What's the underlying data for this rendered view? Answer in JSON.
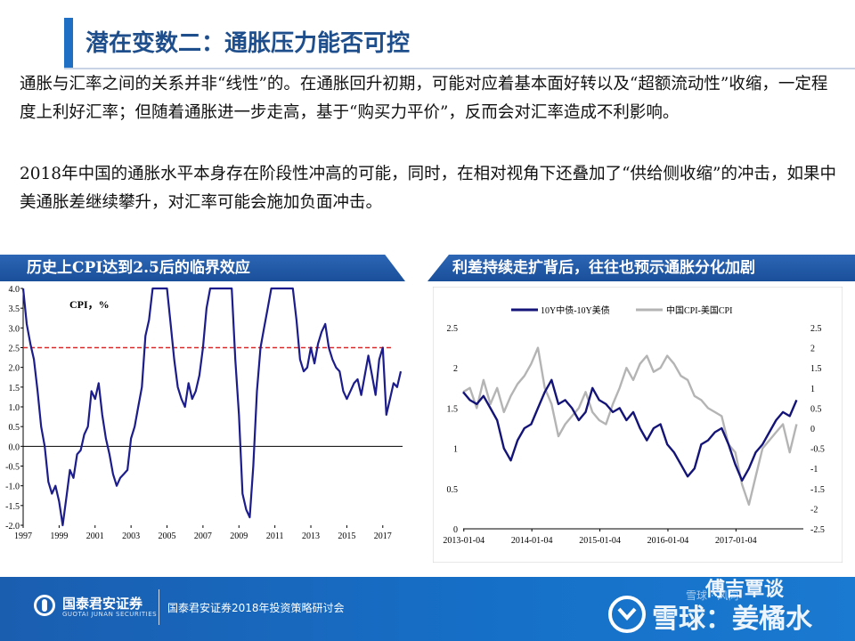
{
  "title": "潜在变数二：通胀压力能否可控",
  "paragraph1": "通胀与汇率之间的关系并非“线性”的。在通胀回升初期，可能对应着基本面好转以及“超额流动性”收缩，一定程度上利好汇率；但随着通胀进一步走高，基于“购买力平价”，反而会对汇率造成不利影响。",
  "paragraph2": "2018年中国的通胀水平本身存在阶段性冲高的可能，同时，在相对视角下还叠加了“供给侧收缩”的冲击，如果中美通胀差继续攀升，对汇率可能会施加负面冲击。",
  "left_section_title": "历史上CPI达到2.5后的临界效应",
  "right_section_title": "利差持续走扩背后，往往也预示通胀分化加剧",
  "footer": {
    "brand": "国泰君安证券",
    "brand_en": "GUOTAI JUNAN SECURITIES",
    "event": "国泰君安证券2018年投资策略研讨会"
  },
  "watermark": {
    "wechat": "傅吉覃谈",
    "small": "雪球 · 风向",
    "main": "雪球：姜橘水"
  },
  "colors": {
    "accent": "#1f6fc5",
    "section_bar": "#1f5aa8",
    "footer": "#1670c8",
    "cpi_line": "#1c1c8c",
    "threshold": "#d62b2b",
    "spread_line": "#141478",
    "cpi_diff_line": "#b4b4b4"
  },
  "chart_data": [
    {
      "type": "line",
      "legend_label": "CPI，%",
      "x_ticks": [
        "1997",
        "1999",
        "2001",
        "2003",
        "2005",
        "2007",
        "2009",
        "2011",
        "2013",
        "2015",
        "2017"
      ],
      "x_range": [
        1997,
        2018.1
      ],
      "y_ticks": [
        "4.0",
        "3.5",
        "3.0",
        "2.5",
        "2.0",
        "1.5",
        "1.0",
        "0.5",
        "0.0",
        "-0.5",
        "-1.0",
        "-1.5",
        "-2.0"
      ],
      "ylim": [
        -2.0,
        4.0
      ],
      "threshold": 2.5,
      "grid": false,
      "x": [
        1997.0,
        1997.2,
        1997.4,
        1997.6,
        1997.8,
        1998.0,
        1998.2,
        1998.4,
        1998.6,
        1998.8,
        1999.0,
        1999.2,
        1999.4,
        1999.6,
        1999.8,
        2000.0,
        2000.2,
        2000.4,
        2000.6,
        2000.8,
        2001.0,
        2001.2,
        2001.4,
        2001.6,
        2001.8,
        2002.0,
        2002.2,
        2002.4,
        2002.6,
        2002.8,
        2003.0,
        2003.2,
        2003.4,
        2003.6,
        2003.8,
        2004.0,
        2004.2,
        2004.4,
        2004.6,
        2004.8,
        2005.0,
        2005.2,
        2005.4,
        2005.6,
        2005.8,
        2006.0,
        2006.2,
        2006.4,
        2006.6,
        2006.8,
        2007.0,
        2007.2,
        2007.4,
        2007.6,
        2007.8,
        2008.0,
        2008.2,
        2008.4,
        2008.6,
        2008.8,
        2009.0,
        2009.2,
        2009.4,
        2009.6,
        2009.8,
        2010.0,
        2010.2,
        2010.4,
        2010.6,
        2010.8,
        2011.0,
        2011.2,
        2011.4,
        2011.6,
        2011.8,
        2012.0,
        2012.2,
        2012.4,
        2012.6,
        2012.8,
        2013.0,
        2013.2,
        2013.4,
        2013.6,
        2013.8,
        2014.0,
        2014.2,
        2014.4,
        2014.6,
        2014.8,
        2015.0,
        2015.2,
        2015.4,
        2015.6,
        2015.8,
        2016.0,
        2016.2,
        2016.4,
        2016.6,
        2016.8,
        2017.0,
        2017.2,
        2017.4,
        2017.6,
        2017.8,
        2018.0
      ],
      "y": [
        4.0,
        3.1,
        2.6,
        2.2,
        1.4,
        0.5,
        0.0,
        -0.9,
        -1.2,
        -1.0,
        -1.4,
        -2.0,
        -1.3,
        -0.6,
        -0.8,
        -0.2,
        -0.1,
        0.3,
        0.5,
        1.4,
        1.2,
        1.6,
        0.8,
        0.2,
        -0.2,
        -0.7,
        -1.0,
        -0.8,
        -0.7,
        -0.6,
        0.2,
        0.5,
        1.0,
        1.5,
        2.8,
        3.2,
        4.0,
        4.0,
        4.0,
        4.0,
        4.0,
        3.1,
        2.2,
        1.5,
        1.2,
        1.0,
        1.6,
        1.2,
        1.4,
        1.8,
        2.5,
        3.5,
        4.0,
        4.0,
        4.0,
        4.0,
        4.0,
        4.0,
        4.0,
        2.2,
        0.8,
        -1.2,
        -1.6,
        -1.8,
        -0.5,
        1.4,
        2.5,
        3.0,
        3.5,
        4.0,
        4.0,
        4.0,
        4.0,
        4.0,
        4.0,
        4.0,
        3.2,
        2.2,
        1.9,
        2.0,
        2.5,
        2.1,
        2.6,
        2.9,
        3.1,
        2.5,
        2.2,
        2.0,
        1.9,
        1.4,
        1.2,
        1.4,
        1.6,
        1.7,
        1.3,
        1.8,
        2.3,
        1.8,
        1.3,
        2.2,
        2.5,
        0.8,
        1.2,
        1.6,
        1.5,
        1.9
      ]
    },
    {
      "type": "line",
      "series": [
        {
          "name": "10Y中债-10Y美债",
          "axis": "left",
          "x": [
            2013.0,
            2013.1,
            2013.2,
            2013.3,
            2013.4,
            2013.5,
            2013.6,
            2013.7,
            2013.8,
            2013.9,
            2014.0,
            2014.1,
            2014.2,
            2014.3,
            2014.4,
            2014.5,
            2014.6,
            2014.7,
            2014.8,
            2014.9,
            2015.0,
            2015.1,
            2015.2,
            2015.3,
            2015.4,
            2015.5,
            2015.6,
            2015.7,
            2015.8,
            2015.9,
            2016.0,
            2016.1,
            2016.2,
            2016.3,
            2016.4,
            2016.5,
            2016.6,
            2016.7,
            2016.8,
            2016.9,
            2017.0,
            2017.1,
            2017.2,
            2017.3,
            2017.4,
            2017.5,
            2017.6,
            2017.7,
            2017.8,
            2017.9
          ],
          "values": [
            1.7,
            1.6,
            1.55,
            1.65,
            1.5,
            1.35,
            1.0,
            0.85,
            1.1,
            1.25,
            1.3,
            1.5,
            1.7,
            1.85,
            1.55,
            1.6,
            1.5,
            1.35,
            1.45,
            1.75,
            1.6,
            1.55,
            1.45,
            1.5,
            1.35,
            1.45,
            1.25,
            1.1,
            1.25,
            1.3,
            1.05,
            0.95,
            0.8,
            0.65,
            0.75,
            1.05,
            1.1,
            1.2,
            1.25,
            1.05,
            0.8,
            0.6,
            0.75,
            0.95,
            1.05,
            1.2,
            1.35,
            1.45,
            1.4,
            1.6
          ]
        },
        {
          "name": "中国CPI-美国CPI",
          "axis": "right",
          "x": [
            2013.0,
            2013.1,
            2013.2,
            2013.3,
            2013.4,
            2013.5,
            2013.6,
            2013.7,
            2013.8,
            2013.9,
            2014.0,
            2014.1,
            2014.2,
            2014.3,
            2014.4,
            2014.5,
            2014.6,
            2014.7,
            2014.8,
            2014.9,
            2015.0,
            2015.1,
            2015.2,
            2015.3,
            2015.4,
            2015.5,
            2015.6,
            2015.7,
            2015.8,
            2015.9,
            2016.0,
            2016.1,
            2016.2,
            2016.3,
            2016.4,
            2016.5,
            2016.6,
            2016.7,
            2016.8,
            2016.9,
            2017.0,
            2017.1,
            2017.2,
            2017.3,
            2017.4,
            2017.5,
            2017.6,
            2017.7,
            2017.8,
            2017.9
          ],
          "values": [
            0.9,
            1.0,
            0.5,
            1.2,
            0.6,
            1.0,
            0.4,
            0.8,
            1.1,
            1.3,
            1.6,
            2.0,
            1.0,
            0.6,
            -0.2,
            0.1,
            0.3,
            0.5,
            0.9,
            0.4,
            0.2,
            0.1,
            0.6,
            1.0,
            1.5,
            1.2,
            1.6,
            1.8,
            1.4,
            1.5,
            1.8,
            1.6,
            1.3,
            1.2,
            0.8,
            0.7,
            0.5,
            0.4,
            0.3,
            -0.4,
            -0.6,
            -1.4,
            -1.9,
            -1.2,
            -0.5,
            -0.3,
            -0.1,
            0.1,
            -0.6,
            0.1
          ]
        }
      ],
      "x_tick_labels": [
        "2013-01-04",
        "2014-01-04",
        "2015-01-04",
        "2016-01-04",
        "2017-01-04"
      ],
      "x_range": [
        2013.0,
        2018.0
      ],
      "left_y_ticks": [
        "2.5",
        "2",
        "1.5",
        "1",
        "0.5",
        "0"
      ],
      "left_ylim": [
        0,
        2.5
      ],
      "right_y_ticks": [
        "2.5",
        "2",
        "1.5",
        "1",
        "0.5",
        "0",
        "-0.5",
        "-1",
        "-1.5",
        "-2",
        "-2.5"
      ],
      "right_ylim": [
        -2.5,
        2.5
      ],
      "legend_position": "top"
    }
  ]
}
